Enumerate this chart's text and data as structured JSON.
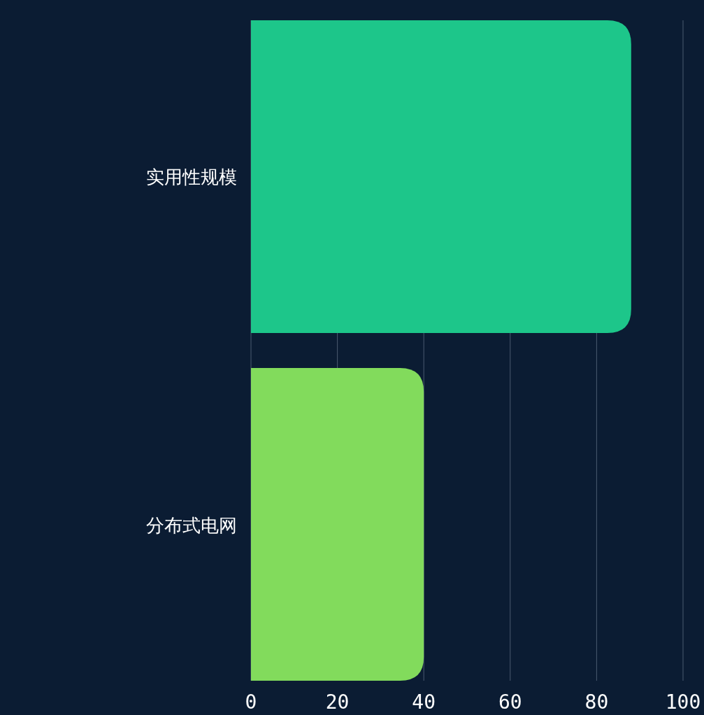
{
  "chart_data": {
    "type": "bar",
    "orientation": "horizontal",
    "categories": [
      "实用性规模",
      "分布式电网"
    ],
    "values": [
      88,
      40
    ],
    "colors": [
      "#1dc68a",
      "#82db5c"
    ],
    "xlim": [
      0,
      100
    ],
    "xticks": [
      0,
      20,
      40,
      60,
      80,
      100
    ],
    "grid": "x"
  }
}
